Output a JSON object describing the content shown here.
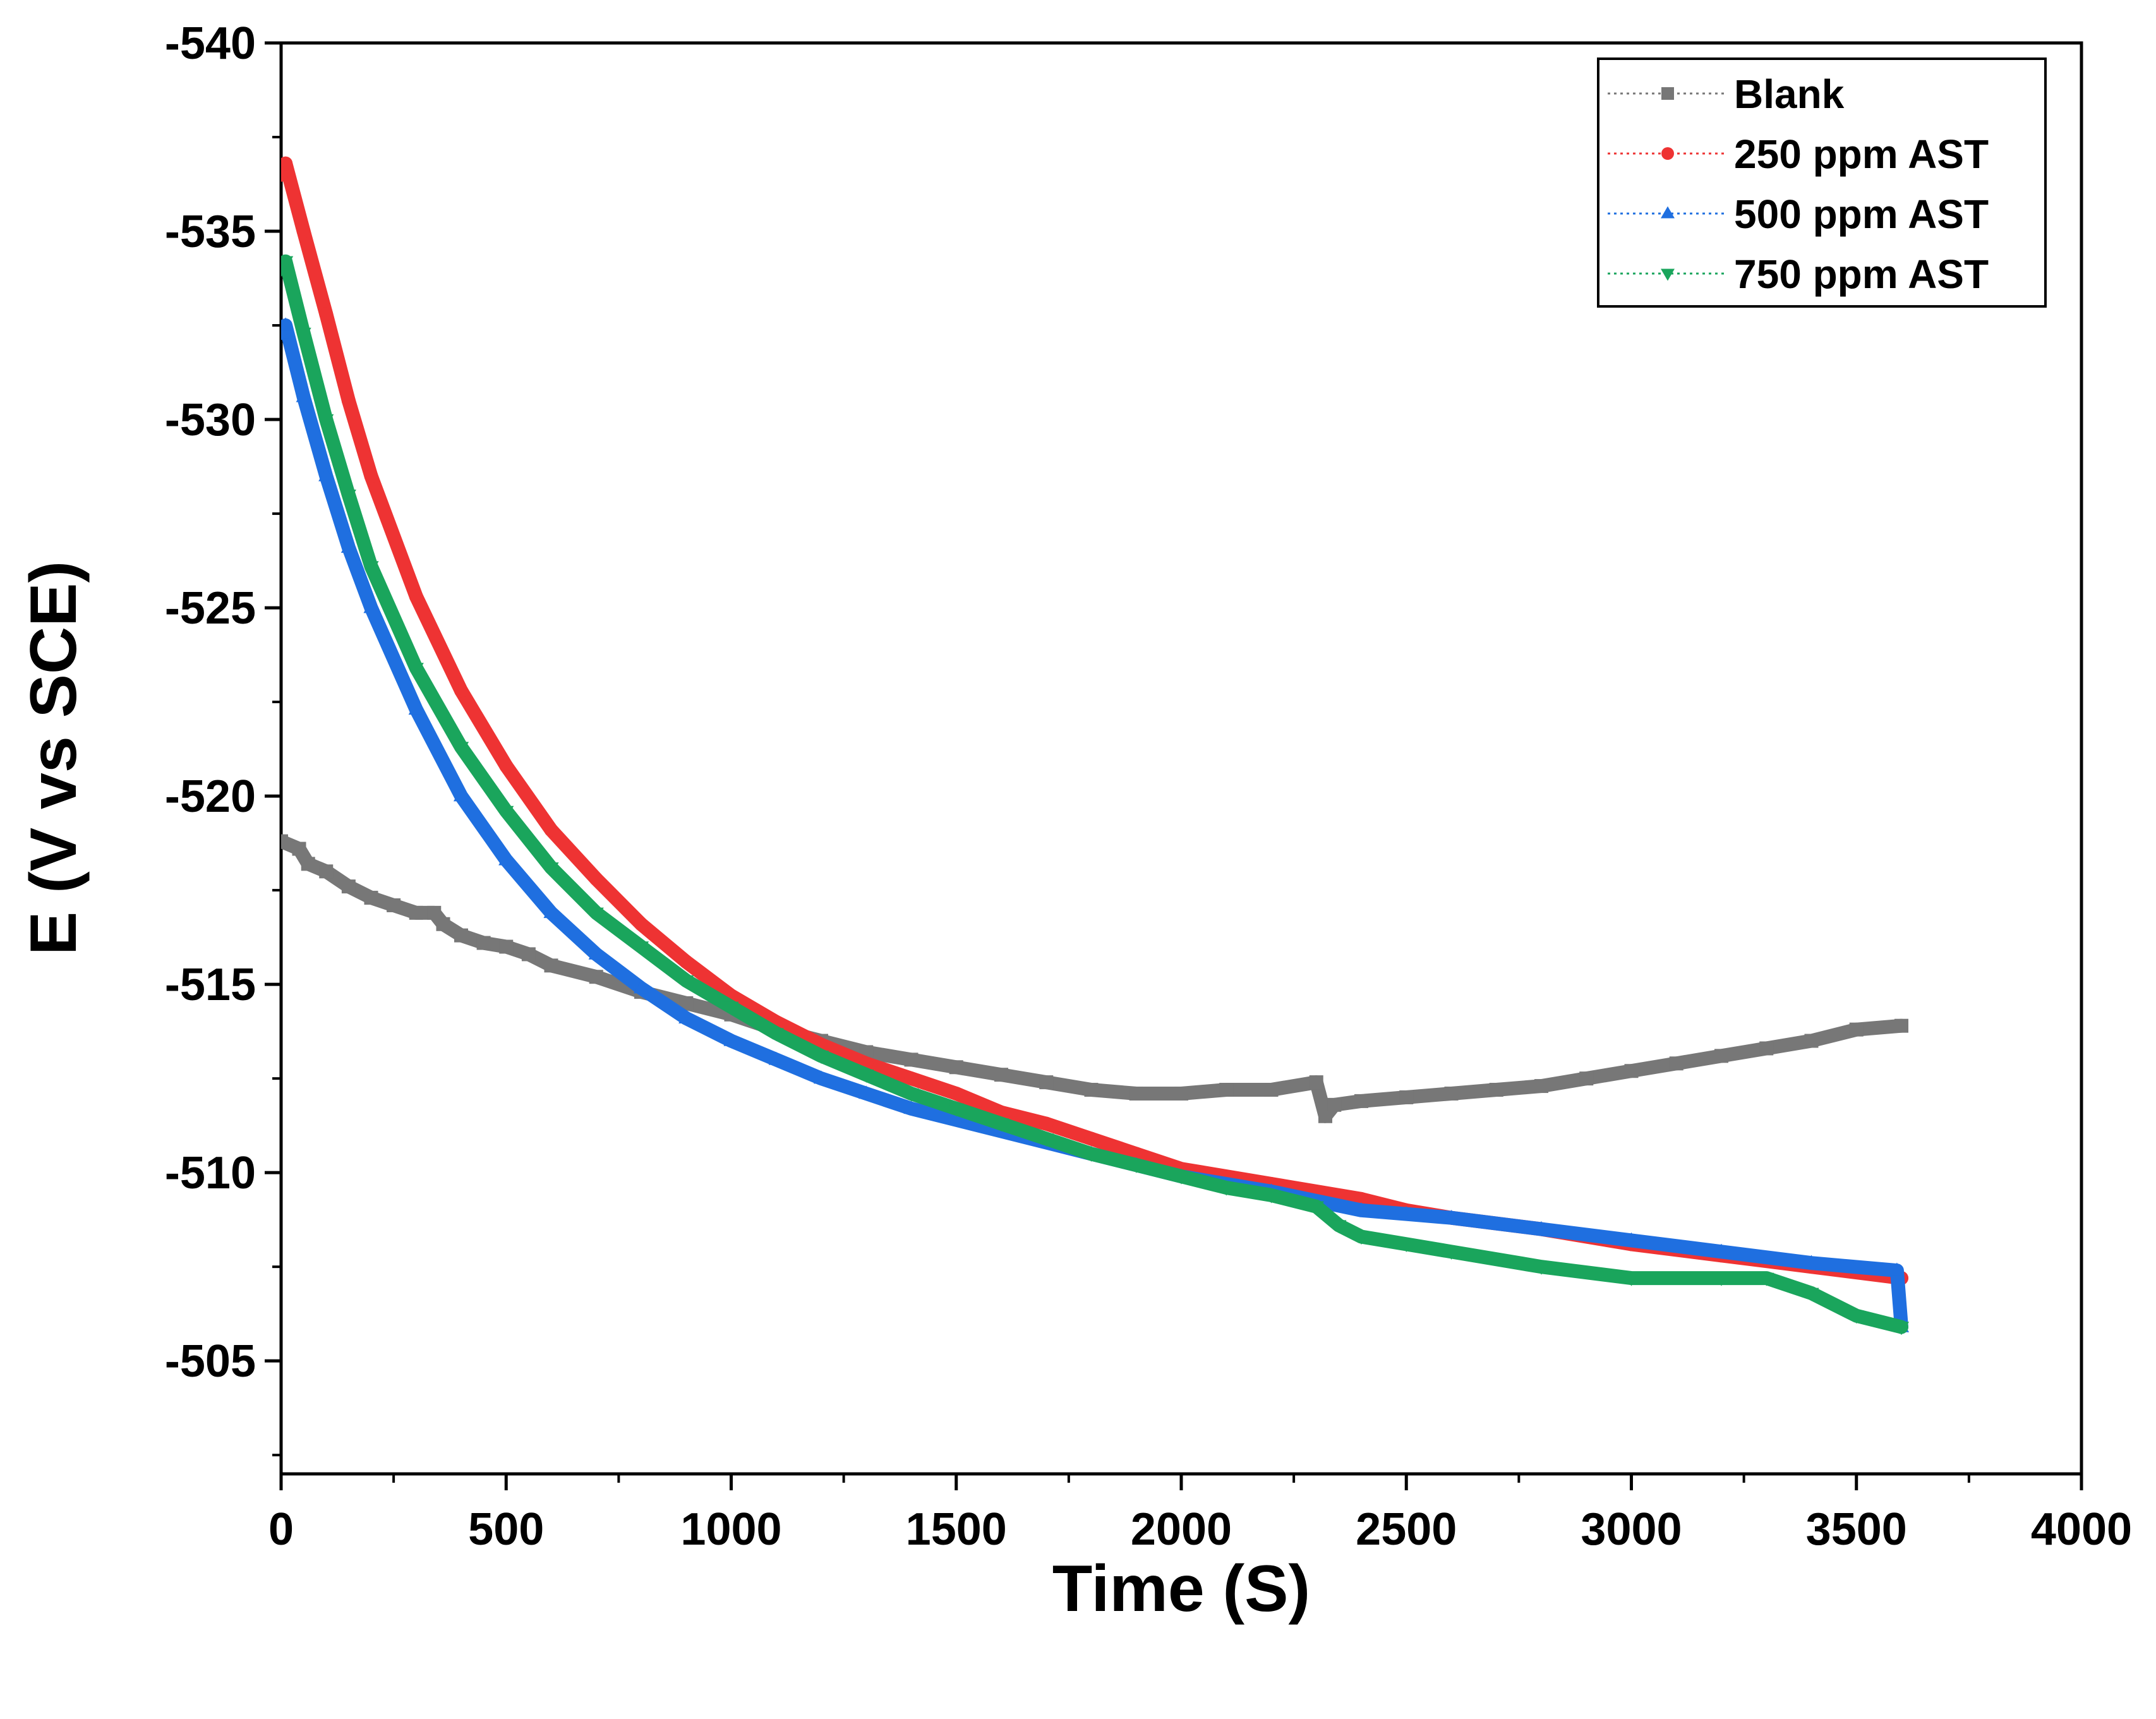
{
  "chart_data": {
    "type": "line",
    "title": "",
    "xlabel": "Time (S)",
    "ylabel": "E (V vs SCE)",
    "xlim": [
      0,
      4000
    ],
    "ylim": [
      -540,
      -502
    ],
    "y_reversed": true,
    "x_ticks": [
      0,
      500,
      1000,
      1500,
      2000,
      2500,
      3000,
      3500,
      4000
    ],
    "x_tick_labels": [
      "0",
      "500",
      "1000",
      "1500",
      "2000",
      "2500",
      "3000",
      "3500",
      "4000"
    ],
    "y_ticks": [
      -540,
      -535,
      -530,
      -525,
      -520,
      -515,
      -510,
      -505
    ],
    "y_tick_labels": [
      "-540",
      "-535",
      "-530",
      "-525",
      "-520",
      "-515",
      "-510",
      "-505"
    ],
    "grid": false,
    "legend_position": "top-right",
    "series": [
      {
        "name": "Blank",
        "color": "#777777",
        "marker": "square",
        "x": [
          0,
          40,
          60,
          100,
          150,
          200,
          250,
          300,
          340,
          360,
          400,
          450,
          500,
          550,
          600,
          700,
          800,
          900,
          1000,
          1100,
          1200,
          1300,
          1400,
          1500,
          1600,
          1700,
          1800,
          1900,
          2000,
          2100,
          2200,
          2300,
          2320,
          2340,
          2400,
          2500,
          2600,
          2700,
          2800,
          2900,
          3000,
          3100,
          3200,
          3300,
          3400,
          3500,
          3600
        ],
        "y": [
          -518.8,
          -518.6,
          -518.2,
          -518.0,
          -517.6,
          -517.3,
          -517.1,
          -516.9,
          -516.9,
          -516.6,
          -516.3,
          -516.1,
          -516.0,
          -515.8,
          -515.5,
          -515.2,
          -514.8,
          -514.5,
          -514.2,
          -513.8,
          -513.5,
          -513.2,
          -513.0,
          -512.8,
          -512.6,
          -512.4,
          -512.2,
          -512.1,
          -512.1,
          -512.2,
          -512.2,
          -512.4,
          -511.5,
          -511.8,
          -511.9,
          -512.0,
          -512.1,
          -512.2,
          -512.3,
          -512.5,
          -512.7,
          -512.9,
          -513.1,
          -513.3,
          -513.5,
          -513.8,
          -513.9
        ]
      },
      {
        "name": "250 ppm AST",
        "color": "#ee3333",
        "marker": "circle",
        "x": [
          0,
          10,
          50,
          100,
          150,
          200,
          300,
          400,
          500,
          600,
          700,
          800,
          900,
          1000,
          1100,
          1200,
          1300,
          1400,
          1500,
          1600,
          1700,
          1800,
          1900,
          2000,
          2200,
          2400,
          2500,
          2600,
          2800,
          3000,
          3200,
          3400,
          3600
        ],
        "y": [
          -536.5,
          -536.8,
          -535.0,
          -532.8,
          -530.5,
          -528.5,
          -525.3,
          -522.8,
          -520.8,
          -519.1,
          -517.8,
          -516.6,
          -515.6,
          -514.7,
          -514.0,
          -513.4,
          -512.9,
          -512.5,
          -512.1,
          -511.6,
          -511.3,
          -510.9,
          -510.5,
          -510.1,
          -509.7,
          -509.3,
          -509.0,
          -508.8,
          -508.5,
          -508.1,
          -507.8,
          -507.5,
          -507.2
        ]
      },
      {
        "name": "500 ppm AST",
        "color": "#1f6fe0",
        "marker": "triangle-up",
        "x": [
          0,
          10,
          50,
          100,
          150,
          200,
          300,
          400,
          500,
          600,
          700,
          800,
          900,
          1000,
          1100,
          1200,
          1300,
          1400,
          1500,
          1600,
          1700,
          1800,
          1900,
          2000,
          2200,
          2400,
          2500,
          2600,
          2800,
          3000,
          3200,
          3400,
          3590,
          3600
        ],
        "y": [
          -532.3,
          -532.5,
          -530.6,
          -528.5,
          -526.6,
          -525.0,
          -522.3,
          -520.0,
          -518.3,
          -516.9,
          -515.8,
          -514.9,
          -514.1,
          -513.5,
          -513.0,
          -512.5,
          -512.1,
          -511.7,
          -511.4,
          -511.1,
          -510.8,
          -510.5,
          -510.2,
          -509.9,
          -509.5,
          -509.0,
          -508.9,
          -508.8,
          -508.5,
          -508.2,
          -507.9,
          -507.6,
          -507.4,
          -505.9
        ]
      },
      {
        "name": "750 ppm AST",
        "color": "#1aa55c",
        "marker": "triangle-down",
        "x": [
          0,
          10,
          50,
          100,
          150,
          200,
          300,
          400,
          500,
          600,
          700,
          800,
          900,
          1000,
          1100,
          1200,
          1300,
          1400,
          1500,
          1600,
          1700,
          1800,
          1900,
          2000,
          2100,
          2200,
          2300,
          2350,
          2400,
          2500,
          2600,
          2800,
          3000,
          3200,
          3300,
          3400,
          3500,
          3600
        ],
        "y": [
          -534.0,
          -534.2,
          -532.3,
          -530.0,
          -528.0,
          -526.1,
          -523.4,
          -521.3,
          -519.6,
          -518.1,
          -516.9,
          -516.0,
          -515.1,
          -514.4,
          -513.7,
          -513.1,
          -512.6,
          -512.1,
          -511.7,
          -511.3,
          -510.9,
          -510.5,
          -510.2,
          -509.9,
          -509.6,
          -509.4,
          -509.1,
          -508.6,
          -508.3,
          -508.1,
          -507.9,
          -507.5,
          -507.2,
          -507.2,
          -507.2,
          -506.8,
          -506.2,
          -505.9
        ]
      }
    ]
  }
}
